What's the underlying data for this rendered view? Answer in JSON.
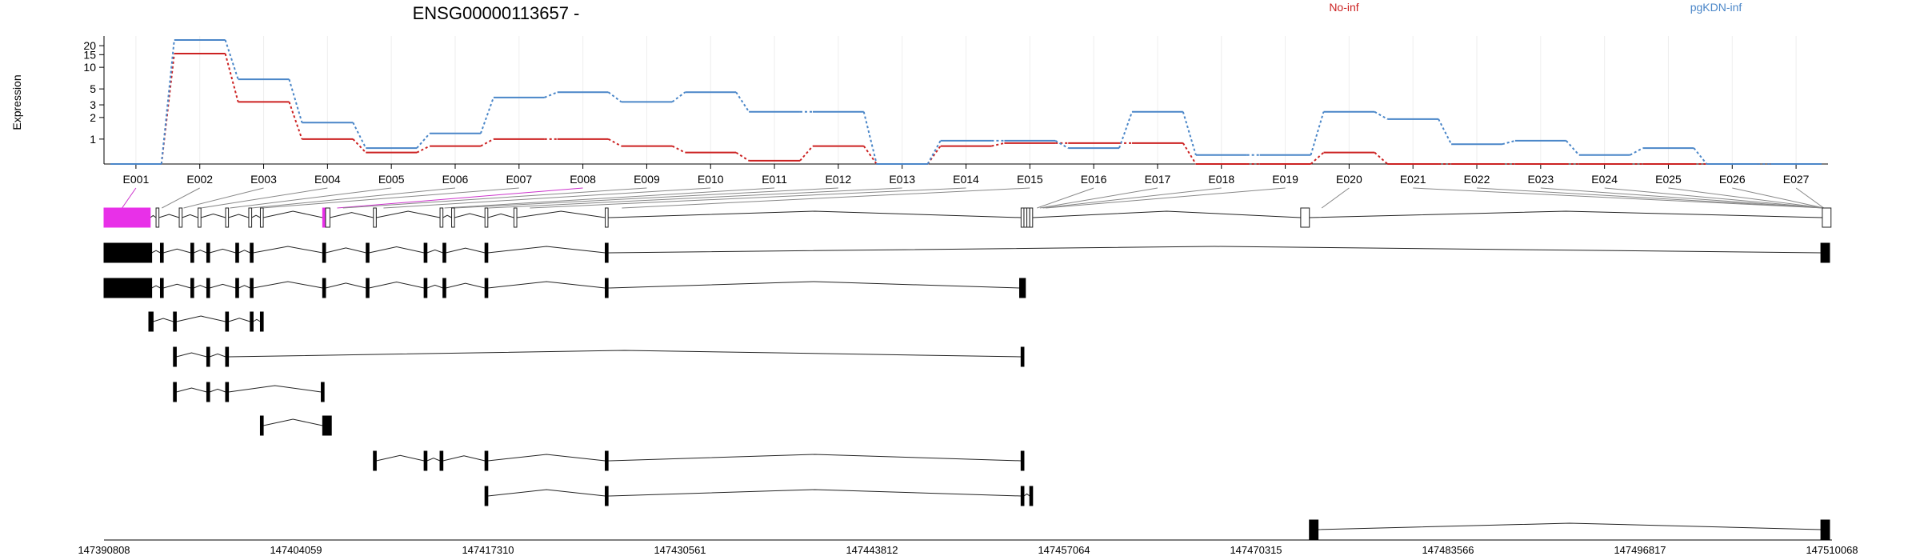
{
  "chart_data": {
    "type": "line",
    "title": "ENSG00000113657 -",
    "ylabel": "Expression",
    "y_scale": "log",
    "y_ticks": [
      "1",
      "2",
      "3",
      "5",
      "10",
      "15",
      "20"
    ],
    "categories": [
      "E001",
      "E002",
      "E003",
      "E004",
      "E005",
      "E006",
      "E007",
      "E008",
      "E009",
      "E010",
      "E011",
      "E012",
      "E013",
      "E014",
      "E015",
      "E016",
      "E017",
      "E018",
      "E019",
      "E020",
      "E021",
      "E022",
      "E023",
      "E024",
      "E025",
      "E026",
      "E027"
    ],
    "series": [
      {
        "name": "No-inf",
        "color": "#cc2222",
        "values": [
          0.45,
          15.5,
          3.3,
          1.0,
          0.65,
          0.8,
          1.0,
          1.0,
          0.8,
          0.65,
          0.5,
          0.8,
          0.45,
          0.8,
          0.88,
          0.88,
          0.88,
          0.45,
          0.45,
          0.65,
          0.45,
          0.45,
          0.45,
          0.45,
          0.45,
          0.45,
          0.45
        ]
      },
      {
        "name": "pgKDN-inf",
        "color": "#4a86c8",
        "values": [
          0.45,
          24.0,
          6.8,
          1.7,
          0.75,
          1.2,
          3.8,
          4.5,
          3.3,
          4.5,
          2.4,
          2.4,
          0.45,
          0.95,
          0.95,
          0.75,
          2.4,
          0.6,
          0.6,
          2.4,
          1.9,
          0.85,
          0.95,
          0.6,
          0.75,
          0.45,
          0.45
        ]
      }
    ],
    "exon_coordinates": [
      [
        147390808,
        147393300
      ],
      [
        147394700,
        147394900
      ],
      [
        147396200,
        147396400
      ],
      [
        147397400,
        147397600
      ],
      [
        147399400,
        147399600
      ],
      [
        147400900,
        147401100
      ],
      [
        147401600,
        147401800
      ],
      [
        147406800,
        147407000
      ],
      [
        147407100,
        147407500
      ],
      [
        147410000,
        147410200
      ],
      [
        147414200,
        147414400
      ],
      [
        147414900,
        147415100
      ],
      [
        147417200,
        147417500
      ],
      [
        147420100,
        147420300
      ],
      [
        147426500,
        147426600
      ],
      [
        147455100,
        147455300
      ],
      [
        147455300,
        147455500
      ],
      [
        147455500,
        147455700
      ],
      [
        147455700,
        147455900
      ],
      [
        147474500,
        147475200
      ],
      [
        147509200,
        147509800
      ]
    ],
    "xaxis_ticks": [
      "147390808",
      "147404059",
      "147417310",
      "147430561",
      "147443812",
      "147457064",
      "147470315",
      "147483566",
      "147496817",
      "147510068"
    ],
    "xaxis_range": [
      147390808,
      147510068
    ],
    "transcripts": [
      {
        "exons": [
          [
            147390808,
            147394000
          ],
          [
            147394400,
            147394600
          ],
          [
            147396000,
            147396200
          ],
          [
            147397300,
            147397500
          ],
          [
            147399200,
            147399400
          ],
          [
            147400800,
            147401000
          ],
          [
            147401600,
            147401800
          ],
          [
            147405900,
            147406100
          ],
          [
            147406100,
            147406400
          ],
          [
            147409400,
            147409600
          ],
          [
            147414000,
            147414200
          ],
          [
            147414800,
            147415000
          ],
          [
            147417100,
            147417300
          ],
          [
            147419100,
            147419300
          ],
          [
            147425400,
            147425600
          ],
          [
            147454100,
            147454300
          ],
          [
            147454300,
            147454500
          ],
          [
            147454500,
            147454700
          ],
          [
            147454700,
            147454900
          ],
          [
            147473400,
            147474000
          ],
          [
            147509400,
            147510000
          ]
        ],
        "highlight": [
          0,
          7
        ],
        "style": "open"
      },
      {
        "exons": [
          [
            147390808,
            147394100
          ],
          [
            147394700,
            147394900
          ],
          [
            147396800,
            147397000
          ],
          [
            147397900,
            147398100
          ],
          [
            147399900,
            147400100
          ],
          [
            147400900,
            147401100
          ],
          [
            147405900,
            147406100
          ],
          [
            147408900,
            147409100
          ],
          [
            147412900,
            147413100
          ],
          [
            147414200,
            147414400
          ],
          [
            147417100,
            147417300
          ],
          [
            147425400,
            147425600
          ],
          [
            147509300,
            147509900
          ]
        ],
        "style": "filled"
      },
      {
        "exons": [
          [
            147390808,
            147394100
          ],
          [
            147394700,
            147394900
          ],
          [
            147396800,
            147397000
          ],
          [
            147397900,
            147398100
          ],
          [
            147399900,
            147400100
          ],
          [
            147400900,
            147401100
          ],
          [
            147405900,
            147406100
          ],
          [
            147408900,
            147409100
          ],
          [
            147412900,
            147413100
          ],
          [
            147414200,
            147414400
          ],
          [
            147417100,
            147417300
          ],
          [
            147425400,
            147425600
          ],
          [
            147454000,
            147454400
          ]
        ],
        "style": "filled"
      },
      {
        "exons": [
          [
            147393900,
            147394200
          ],
          [
            147395600,
            147395800
          ],
          [
            147399200,
            147399400
          ],
          [
            147400900,
            147401100
          ],
          [
            147401600,
            147401800
          ]
        ],
        "style": "filled"
      },
      {
        "exons": [
          [
            147395600,
            147395800
          ],
          [
            147397900,
            147398100
          ],
          [
            147399200,
            147399400
          ],
          [
            147454100,
            147454300
          ]
        ],
        "style": "filled"
      },
      {
        "exons": [
          [
            147395600,
            147395800
          ],
          [
            147397900,
            147398100
          ],
          [
            147399200,
            147399400
          ],
          [
            147405800,
            147406000
          ]
        ],
        "style": "filled"
      },
      {
        "exons": [
          [
            147401600,
            147401800
          ],
          [
            147405900,
            147406500
          ]
        ],
        "style": "filled"
      },
      {
        "exons": [
          [
            147409400,
            147409600
          ],
          [
            147412900,
            147413100
          ],
          [
            147414000,
            147414200
          ],
          [
            147417100,
            147417300
          ],
          [
            147425400,
            147425600
          ],
          [
            147454100,
            147454300
          ]
        ],
        "style": "filled"
      },
      {
        "exons": [
          [
            147417100,
            147417300
          ],
          [
            147425400,
            147425600
          ],
          [
            147454100,
            147454300
          ],
          [
            147454700,
            147454900
          ]
        ],
        "style": "filled"
      },
      {
        "exons": [
          [
            147474000,
            147474600
          ],
          [
            147509300,
            147509900
          ]
        ],
        "style": "filled"
      }
    ]
  }
}
